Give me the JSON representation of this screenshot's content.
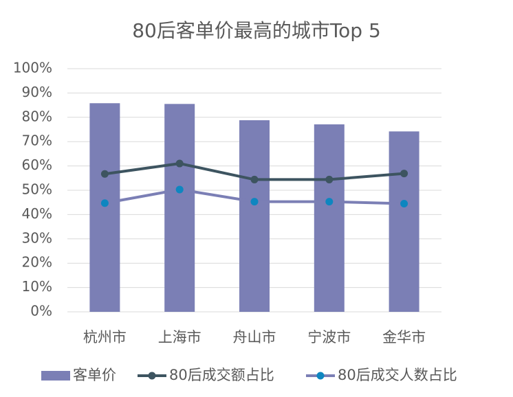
{
  "chart_data": {
    "type": "bar",
    "title": "80后客单价最高的城市Top 5",
    "categories": [
      "杭州市",
      "上海市",
      "舟山市",
      "宁波市",
      "金华市"
    ],
    "series": [
      {
        "name": "客单价",
        "type": "bar",
        "color": "#7b7fb5",
        "values": [
          85.8,
          85.5,
          78.8,
          77.1,
          74.2
        ]
      },
      {
        "name": "80后成交额占比",
        "type": "line",
        "color": "#3d5460",
        "marker_color": "#3d5460",
        "values": [
          56.7,
          61.0,
          54.4,
          54.4,
          56.9
        ]
      },
      {
        "name": "80后成交人数占比",
        "type": "line",
        "color": "#7b7fb5",
        "marker_color": "#0e86c0",
        "values": [
          44.7,
          50.3,
          45.3,
          45.3,
          44.5
        ]
      }
    ],
    "ylim": [
      0,
      100
    ],
    "yticks": [
      {
        "value": 0,
        "label": "0%"
      },
      {
        "value": 10,
        "label": "10%"
      },
      {
        "value": 20,
        "label": "20%"
      },
      {
        "value": 30,
        "label": "30%"
      },
      {
        "value": 40,
        "label": "40%"
      },
      {
        "value": 50,
        "label": "50%"
      },
      {
        "value": 60,
        "label": "60%"
      },
      {
        "value": 70,
        "label": "70%"
      },
      {
        "value": 80,
        "label": "80%"
      },
      {
        "value": 90,
        "label": "90%"
      },
      {
        "value": 100,
        "label": "100%"
      }
    ],
    "grid": true,
    "legend": "bottom"
  }
}
